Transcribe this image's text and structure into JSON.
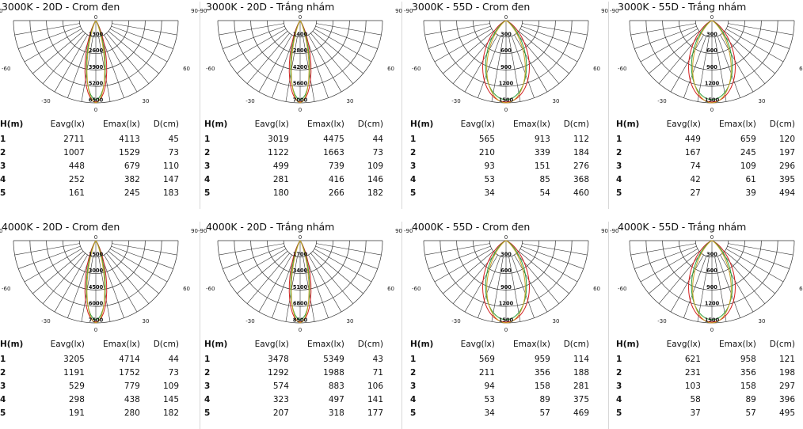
{
  "chart_data": [
    {
      "type": "polar",
      "title": "3000K - 20D - Crom đen",
      "angle_labels": [
        "-90",
        "90",
        "-60",
        "60",
        "-30",
        "30",
        "0",
        "0"
      ],
      "radial_ticks": [
        "1300",
        "2600",
        "3900",
        "5200",
        "6500"
      ],
      "beam_deg": 20,
      "table_header": [
        "H(m)",
        "Eavg(lx)",
        "Emax(lx)",
        "D(cm)"
      ],
      "rows": [
        [
          "1",
          "2711",
          "4113",
          "45"
        ],
        [
          "2",
          "1007",
          "1529",
          "73"
        ],
        [
          "3",
          "448",
          "679",
          "110"
        ],
        [
          "4",
          "252",
          "382",
          "147"
        ],
        [
          "5",
          "161",
          "245",
          "183"
        ]
      ]
    },
    {
      "type": "polar",
      "title": "3000K -  20D - Trắng nhám",
      "angle_labels": [
        "-90",
        "90",
        "-60",
        "60",
        "-30",
        "30",
        "0",
        "0"
      ],
      "radial_ticks": [
        "1400",
        "2800",
        "4200",
        "5600",
        "7000"
      ],
      "beam_deg": 20,
      "table_header": [
        "H(m)",
        "Eavg(lx)",
        "Emax(lx)",
        "D(cm)"
      ],
      "rows": [
        [
          "1",
          "3019",
          "4475",
          "44"
        ],
        [
          "2",
          "1122",
          "1663",
          "73"
        ],
        [
          "3",
          "499",
          "739",
          "109"
        ],
        [
          "4",
          "281",
          "416",
          "146"
        ],
        [
          "5",
          "180",
          "266",
          "182"
        ]
      ]
    },
    {
      "type": "polar",
      "title": "3000K - 55D - Crom đen",
      "angle_labels": [
        "-90",
        "90",
        "-60",
        "60",
        "-30",
        "30",
        "0",
        "0"
      ],
      "radial_ticks": [
        "300",
        "600",
        "900",
        "1200",
        "1500"
      ],
      "beam_deg": 55,
      "table_header": [
        "H(m)",
        "Eavg(lx)",
        "Emax(lx)",
        "D(cm)"
      ],
      "rows": [
        [
          "1",
          "565",
          "913",
          "112"
        ],
        [
          "2",
          "210",
          "339",
          "184"
        ],
        [
          "3",
          "93",
          "151",
          "276"
        ],
        [
          "4",
          "53",
          "85",
          "368"
        ],
        [
          "5",
          "34",
          "54",
          "460"
        ]
      ]
    },
    {
      "type": "polar",
      "title": "3000K - 55D - Trắng nhám",
      "angle_labels": [
        "-90",
        "90",
        "-60",
        "60",
        "-30",
        "30",
        "0",
        "0"
      ],
      "radial_ticks": [
        "300",
        "600",
        "900",
        "1200",
        "1500"
      ],
      "beam_deg": 55,
      "table_header": [
        "H(m)",
        "Eavg(lx)",
        "Emax(lx)",
        "D(cm)"
      ],
      "rows": [
        [
          "1",
          "449",
          "659",
          "120"
        ],
        [
          "2",
          "167",
          "245",
          "197"
        ],
        [
          "3",
          "74",
          "109",
          "296"
        ],
        [
          "4",
          "42",
          "61",
          "395"
        ],
        [
          "5",
          "27",
          "39",
          "494"
        ]
      ]
    },
    {
      "type": "polar",
      "title": "4000K - 20D - Crom đen",
      "angle_labels": [
        "-90",
        "90",
        "-60",
        "60",
        "-30",
        "30",
        "0",
        "0"
      ],
      "radial_ticks": [
        "1500",
        "3000",
        "4500",
        "6000",
        "7500"
      ],
      "beam_deg": 20,
      "table_header": [
        "H(m)",
        "Eavg(lx)",
        "Emax(lx)",
        "D(cm)"
      ],
      "rows": [
        [
          "1",
          "3205",
          "4714",
          "44"
        ],
        [
          "2",
          "1191",
          "1752",
          "73"
        ],
        [
          "3",
          "529",
          "779",
          "109"
        ],
        [
          "4",
          "298",
          "438",
          "145"
        ],
        [
          "5",
          "191",
          "280",
          "182"
        ]
      ]
    },
    {
      "type": "polar",
      "title": "4000K -  20D - Trắng nhám",
      "angle_labels": [
        "-90",
        "90",
        "-60",
        "60",
        "-30",
        "30",
        "0",
        "0"
      ],
      "radial_ticks": [
        "1700",
        "3400",
        "5100",
        "6800",
        "8500"
      ],
      "beam_deg": 20,
      "table_header": [
        "H(m)",
        "Eavg(lx)",
        "Emax(lx)",
        "D(cm)"
      ],
      "rows": [
        [
          "1",
          "3478",
          "5349",
          "43"
        ],
        [
          "2",
          "1292",
          "1988",
          "71"
        ],
        [
          "3",
          "574",
          "883",
          "106"
        ],
        [
          "4",
          "323",
          "497",
          "141"
        ],
        [
          "5",
          "207",
          "318",
          "177"
        ]
      ]
    },
    {
      "type": "polar",
      "title": "4000K - 55D - Crom đen",
      "angle_labels": [
        "-90",
        "90",
        "-60",
        "60",
        "-30",
        "30",
        "0",
        "0"
      ],
      "radial_ticks": [
        "300",
        "600",
        "900",
        "1200",
        "1500"
      ],
      "beam_deg": 55,
      "table_header": [
        "H(m)",
        "Eavg(lx)",
        "Emax(lx)",
        "D(cm)"
      ],
      "rows": [
        [
          "1",
          "569",
          "959",
          "114"
        ],
        [
          "2",
          "211",
          "356",
          "188"
        ],
        [
          "3",
          "94",
          "158",
          "281"
        ],
        [
          "4",
          "53",
          "89",
          "375"
        ],
        [
          "5",
          "34",
          "57",
          "469"
        ]
      ]
    },
    {
      "type": "polar",
      "title": "4000K - 55D - Trắng nhám",
      "angle_labels": [
        "-90",
        "90",
        "-60",
        "60",
        "-30",
        "30",
        "0",
        "0"
      ],
      "radial_ticks": [
        "300",
        "600",
        "900",
        "1200",
        "1500"
      ],
      "beam_deg": 55,
      "table_header": [
        "H(m)",
        "Eavg(lx)",
        "Emax(lx)",
        "D(cm)"
      ],
      "rows": [
        [
          "1",
          "621",
          "958",
          "121"
        ],
        [
          "2",
          "231",
          "356",
          "198"
        ],
        [
          "3",
          "103",
          "158",
          "297"
        ],
        [
          "4",
          "58",
          "89",
          "396"
        ],
        [
          "5",
          "37",
          "57",
          "495"
        ]
      ]
    }
  ],
  "colors": {
    "grid": "#333333",
    "curve_a": "#d42020",
    "curve_b": "#2e9e3a",
    "curve_c": "#c9a227",
    "divider": "#d8d8d8"
  }
}
